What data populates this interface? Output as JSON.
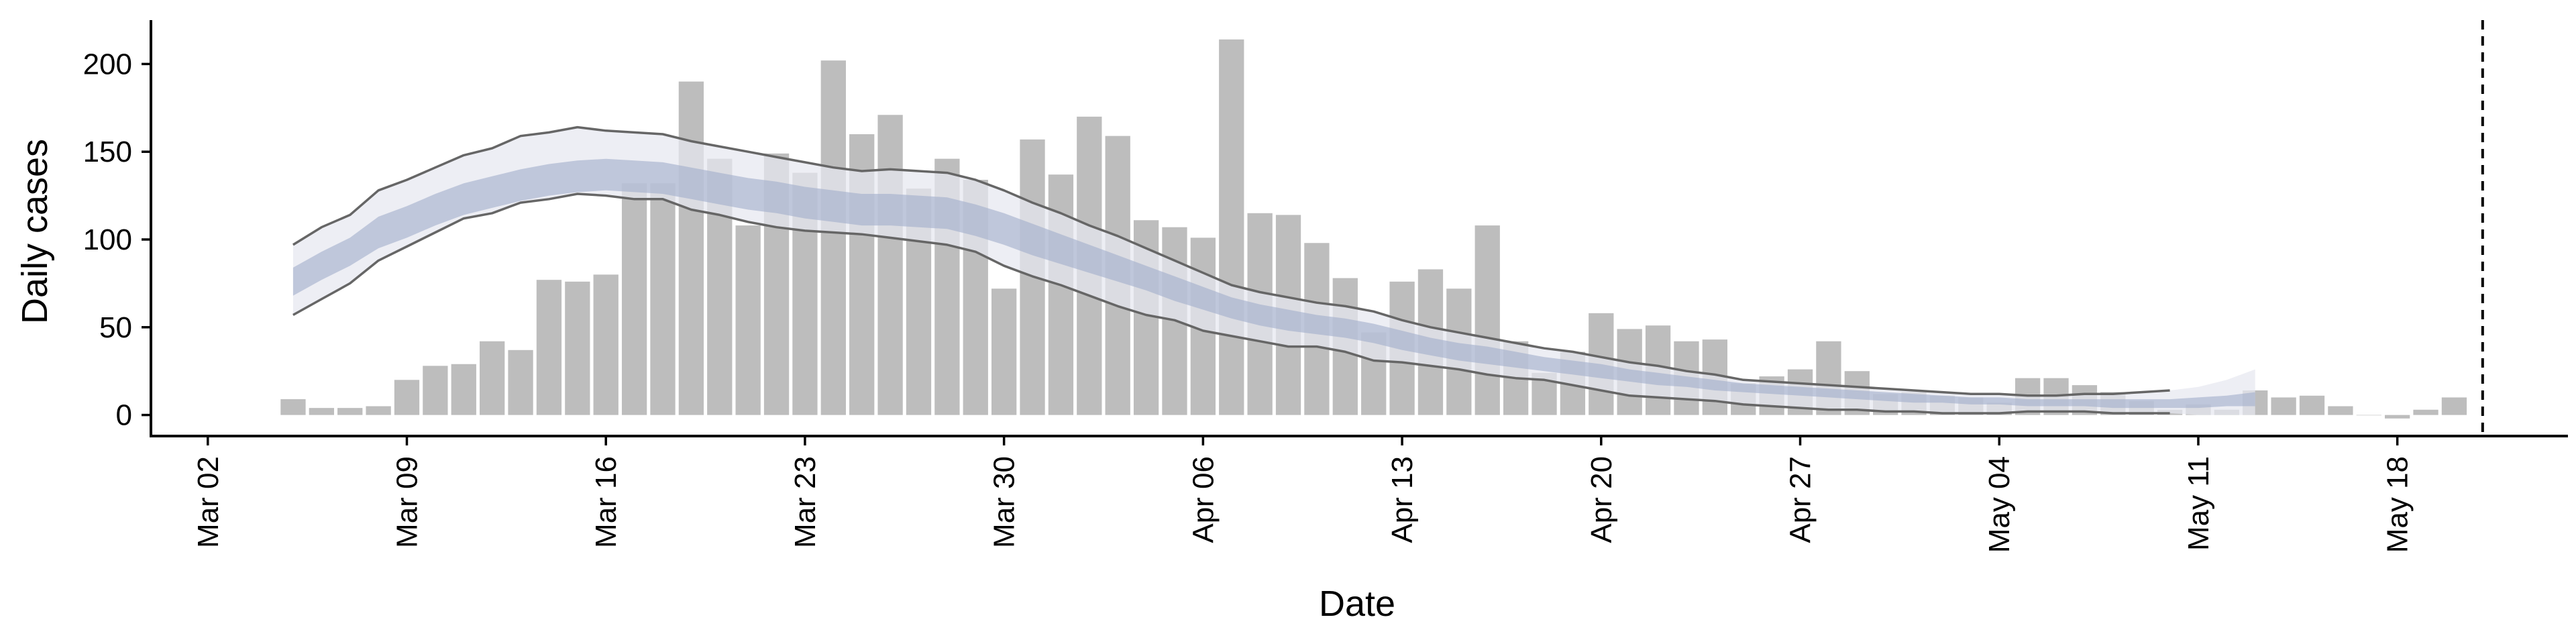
{
  "chart_data": {
    "type": "bar",
    "xlabel": "Date",
    "ylabel": "Daily cases",
    "title": "",
    "xlim": [
      "2020-02-29",
      "2020-05-24"
    ],
    "ylim": [
      -12,
      225
    ],
    "x_tick_labels": [
      "Mar 02",
      "Mar 09",
      "Mar 16",
      "Mar 23",
      "Mar 30",
      "Apr 06",
      "Apr 13",
      "Apr 20",
      "Apr 27",
      "May 04",
      "May 11",
      "May 18"
    ],
    "x_tick_dates": [
      "2020-03-02",
      "2020-03-09",
      "2020-03-16",
      "2020-03-23",
      "2020-03-30",
      "2020-04-06",
      "2020-04-13",
      "2020-04-20",
      "2020-04-27",
      "2020-05-04",
      "2020-05-11",
      "2020-05-18"
    ],
    "y_ticks": [
      0,
      50,
      100,
      150,
      200
    ],
    "grid": false,
    "colors": {
      "bars": "#bdbdbd",
      "band_outer": "#e6e8f0",
      "band_inner": "#a3aecb",
      "lines": "#666666",
      "vline": "#000000"
    },
    "bars": {
      "start_date": "2020-03-05",
      "values": [
        9,
        4,
        4,
        5,
        20,
        28,
        29,
        42,
        37,
        77,
        76,
        80,
        132,
        132,
        190,
        146,
        108,
        149,
        138,
        202,
        160,
        171,
        129,
        146,
        134,
        72,
        157,
        137,
        170,
        159,
        111,
        107,
        101,
        214,
        115,
        114,
        98,
        78,
        47,
        76,
        83,
        72,
        108,
        42,
        24,
        36,
        58,
        49,
        51,
        42,
        43,
        18,
        22,
        26,
        42,
        25,
        12,
        13,
        11,
        10,
        7,
        21,
        21,
        17,
        13,
        8,
        3,
        6,
        3,
        14,
        10,
        11,
        5,
        0,
        -2,
        3,
        10
      ]
    },
    "projection": {
      "start_date": "2020-03-05",
      "upper": [
        97,
        107,
        114,
        128,
        134,
        141,
        148,
        152,
        159,
        161,
        164,
        162,
        161,
        160,
        156,
        153,
        150,
        147,
        144,
        141,
        139,
        140,
        139,
        138,
        134,
        128,
        121,
        115,
        108,
        102,
        95,
        88,
        81,
        74,
        70,
        67,
        64,
        62,
        59,
        54,
        50,
        47,
        44,
        41,
        38,
        36,
        33,
        30,
        28,
        25,
        23,
        20,
        19,
        18,
        17,
        16,
        15,
        14,
        13,
        12,
        12,
        11,
        11,
        12,
        12,
        13,
        14,
        16,
        20,
        26
      ],
      "upper_inner": [
        84,
        93,
        101,
        113,
        119,
        126,
        132,
        136,
        140,
        143,
        145,
        146,
        145,
        144,
        141,
        138,
        135,
        133,
        130,
        128,
        126,
        126,
        125,
        124,
        120,
        115,
        109,
        103,
        97,
        91,
        85,
        79,
        73,
        67,
        63,
        60,
        57,
        55,
        52,
        48,
        44,
        41,
        39,
        36,
        33,
        31,
        29,
        26,
        24,
        22,
        20,
        18,
        17,
        16,
        15,
        14,
        13,
        12,
        11,
        10,
        10,
        9,
        9,
        9,
        9,
        9,
        9,
        10,
        11,
        13
      ],
      "median": [
        76,
        85,
        93,
        104,
        110,
        117,
        123,
        127,
        131,
        134,
        136,
        137,
        136,
        135,
        132,
        129,
        126,
        124,
        121,
        119,
        117,
        117,
        116,
        115,
        111,
        106,
        100,
        95,
        89,
        84,
        78,
        72,
        66,
        61,
        57,
        54,
        51,
        49,
        46,
        42,
        39,
        36,
        34,
        32,
        29,
        27,
        25,
        23,
        21,
        19,
        17,
        16,
        15,
        14,
        13,
        12,
        11,
        10,
        9,
        9,
        8,
        8,
        7,
        7,
        7,
        7,
        7,
        7,
        8,
        9
      ],
      "lower_inner": [
        68,
        77,
        85,
        95,
        101,
        108,
        114,
        118,
        122,
        125,
        127,
        128,
        127,
        126,
        123,
        120,
        117,
        115,
        112,
        110,
        108,
        108,
        107,
        106,
        102,
        97,
        91,
        86,
        81,
        76,
        71,
        65,
        60,
        55,
        51,
        48,
        46,
        44,
        41,
        37,
        34,
        31,
        29,
        27,
        25,
        23,
        21,
        19,
        17,
        16,
        14,
        13,
        12,
        11,
        10,
        9,
        8,
        7,
        7,
        6,
        6,
        5,
        5,
        5,
        4,
        4,
        4,
        4,
        5,
        5
      ],
      "lower": [
        57,
        66,
        75,
        88,
        96,
        104,
        112,
        115,
        121,
        123,
        126,
        125,
        123,
        123,
        117,
        114,
        110,
        107,
        105,
        104,
        103,
        101,
        99,
        97,
        93,
        85,
        79,
        74,
        68,
        62,
        57,
        54,
        48,
        45,
        42,
        39,
        39,
        36,
        31,
        30,
        28,
        26,
        23,
        21,
        20,
        17,
        14,
        11,
        10,
        9,
        8,
        6,
        5,
        4,
        3,
        3,
        2,
        2,
        1,
        1,
        1,
        2,
        2,
        2,
        1,
        1,
        1,
        0,
        0,
        0
      ]
    },
    "vline_date": "2020-05-21"
  }
}
